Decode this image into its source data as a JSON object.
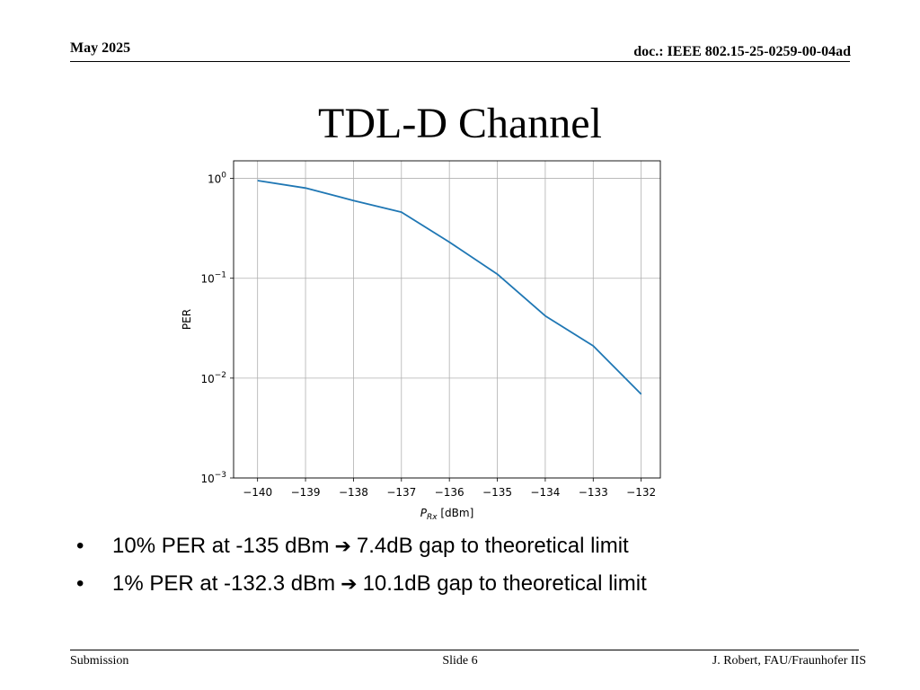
{
  "header": {
    "date": "May 2025",
    "doc": "doc.: IEEE 802.15-25-0259-00-04ad"
  },
  "title": "TDL-D Channel",
  "chart_data": {
    "type": "line",
    "xlabel": "P_Rx [dBm]",
    "ylabel": "PER",
    "xlim": [
      -140.5,
      -131.6
    ],
    "yscale": "log",
    "ylim": [
      0.001,
      1.5
    ],
    "grid": true,
    "x_ticks": [
      -140,
      -139,
      -138,
      -137,
      -136,
      -135,
      -134,
      -133,
      -132
    ],
    "x_tick_labels": [
      "−140",
      "−139",
      "−138",
      "−137",
      "−136",
      "−135",
      "−134",
      "−133",
      "−132"
    ],
    "y_ticks": [
      1,
      0.1,
      0.01,
      0.001
    ],
    "y_tick_labels": [
      {
        "base": "10",
        "exp": "0"
      },
      {
        "base": "10",
        "exp": "−1"
      },
      {
        "base": "10",
        "exp": "−2"
      },
      {
        "base": "10",
        "exp": "−3"
      }
    ],
    "series": [
      {
        "color": "#1f77b4",
        "x": [
          -140,
          -139,
          -138,
          -137,
          -136,
          -135,
          -134,
          -133,
          -132
        ],
        "y": [
          0.95,
          0.8,
          0.6,
          0.46,
          0.23,
          0.11,
          0.042,
          0.021,
          0.0069
        ]
      }
    ]
  },
  "bullets": [
    {
      "before": "10% PER at -135 dBm",
      "after": "7.4dB gap to theoretical limit"
    },
    {
      "before": "1% PER at -132.3 dBm",
      "after": "10.1dB gap to theoretical limit"
    }
  ],
  "bullet_glyph": "•",
  "arrow_glyph": "➔",
  "footer": {
    "left": "Submission",
    "center": "Slide 6",
    "right": "J. Robert, FAU/Fraunhofer IIS"
  }
}
